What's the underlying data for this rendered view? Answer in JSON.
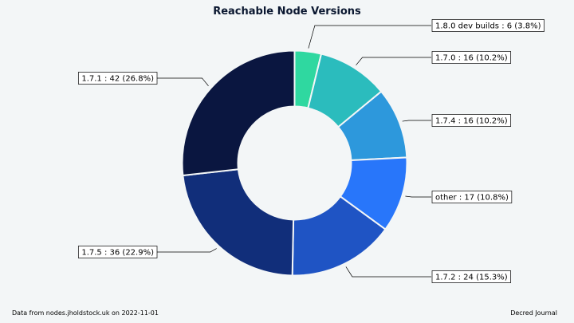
{
  "chart_data": {
    "type": "pie",
    "variant": "donut",
    "title": "Reachable Node Versions",
    "slices": [
      {
        "label": "1.8.0 dev builds",
        "value": 6,
        "percent": "3.8%",
        "color": "#2fd8a0"
      },
      {
        "label": "1.7.0",
        "value": 16,
        "percent": "10.2%",
        "color": "#2bbcbd"
      },
      {
        "label": "1.7.4",
        "value": 16,
        "percent": "10.2%",
        "color": "#2d98dc"
      },
      {
        "label": "other",
        "value": 17,
        "percent": "10.8%",
        "color": "#2876fa"
      },
      {
        "label": "1.7.2",
        "value": 24,
        "percent": "15.3%",
        "color": "#1f54c4"
      },
      {
        "label": "1.7.5",
        "value": 36,
        "percent": "22.9%",
        "color": "#112e7a"
      },
      {
        "label": "1.7.1",
        "value": 42,
        "percent": "26.8%",
        "color": "#0a1640"
      }
    ]
  },
  "footer": {
    "source": "Data from nodes.jholdstock.uk on 2022-11-01",
    "credit": "Decred Journal"
  }
}
